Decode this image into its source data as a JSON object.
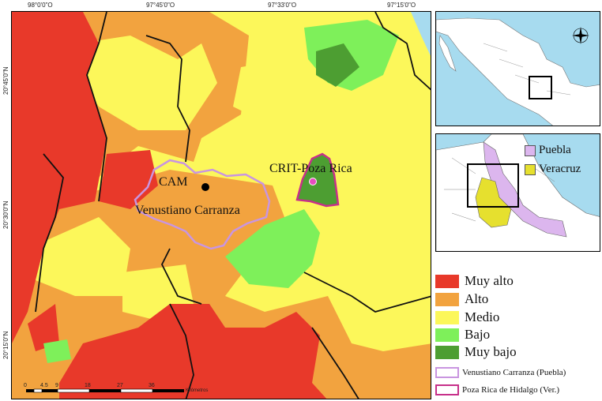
{
  "map": {
    "coords_top": [
      "98°0'0\"O",
      "97°45'0\"O",
      "97°33'0\"O",
      "97°15'0\"O"
    ],
    "coords_left": [
      "20°45'0\"N",
      "20°30'0\"N",
      "20°15'0\"N"
    ],
    "labels": {
      "cam": "CAM",
      "venustiano": "Venustiano Carranza",
      "crit": "CRIT-Poza Rica"
    },
    "scale": {
      "ticks": [
        "0",
        "4.5",
        "9",
        "18",
        "27",
        "36"
      ],
      "unit": "Kilómetros"
    }
  },
  "legend": {
    "classes": [
      {
        "label": "Muy alto",
        "color": "#e8392a"
      },
      {
        "label": "Alto",
        "color": "#f2a33f"
      },
      {
        "label": "Medio",
        "color": "#fcf75a"
      },
      {
        "label": "Bajo",
        "color": "#7ef05a"
      },
      {
        "label": "Muy bajo",
        "color": "#4d9e32"
      }
    ],
    "boundaries": [
      {
        "label": "Venustiano Carranza (Puebla)",
        "color": "#c995e0"
      },
      {
        "label": "Poza Rica de Hidalgo (Ver.)",
        "color": "#c7308a"
      }
    ]
  },
  "inset2": {
    "puebla": {
      "label": "Puebla",
      "color": "#dcb6ee"
    },
    "veracruz": {
      "label": "Veracruz",
      "color": "#e6e02e"
    }
  }
}
